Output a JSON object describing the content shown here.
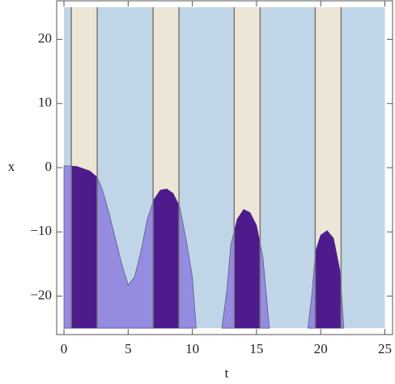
{
  "chart_data": {
    "type": "area",
    "xlabel": "t",
    "ylabel": "x",
    "xlim": [
      -0.57,
      25.6
    ],
    "ylim": [
      -26,
      26
    ],
    "xticks": [
      0,
      5,
      10,
      15,
      20,
      25
    ],
    "yticks": [
      {
        "value": -20,
        "label": "−20"
      },
      {
        "value": -10,
        "label": "−10"
      },
      0,
      10,
      20
    ],
    "region": {
      "x": [
        0,
        25
      ],
      "y": [
        -25,
        25
      ],
      "color": "#c1d5e8"
    },
    "bands": [
      [
        0.57,
        2.59
      ],
      [
        6.94,
        8.96
      ],
      [
        13.26,
        15.28
      ],
      [
        19.57,
        21.59
      ]
    ],
    "band_color": "#ede5d5",
    "band_fill_color": "#4e1b8c",
    "x": [
      0,
      1,
      2,
      2.6,
      3,
      3.5,
      4,
      4.5,
      5,
      5.5,
      6,
      6.5,
      7,
      7.5,
      8,
      8.5,
      9,
      9.5,
      10,
      10.3,
      null,
      12.3,
      12.7,
      13,
      13.5,
      14,
      14.5,
      15,
      15.5,
      16,
      null,
      19,
      19.3,
      19.6,
      20,
      20.5,
      21,
      21.5,
      21.8
    ],
    "series": [
      {
        "color": "#958ce2",
        "values": [
          0.3,
          0.2,
          -0.5,
          -1.5,
          -3.5,
          -7,
          -11,
          -15,
          -18.3,
          -17,
          -13,
          -8,
          -5,
          -3.5,
          -3.3,
          -4,
          -6,
          -11,
          -17,
          -25,
          null,
          -25,
          -19,
          -12,
          -8,
          -6.5,
          -7,
          -9,
          -14,
          -25,
          null,
          -25,
          -20,
          -13,
          -10.5,
          -9.8,
          -11,
          -16,
          -25
        ]
      }
    ]
  }
}
